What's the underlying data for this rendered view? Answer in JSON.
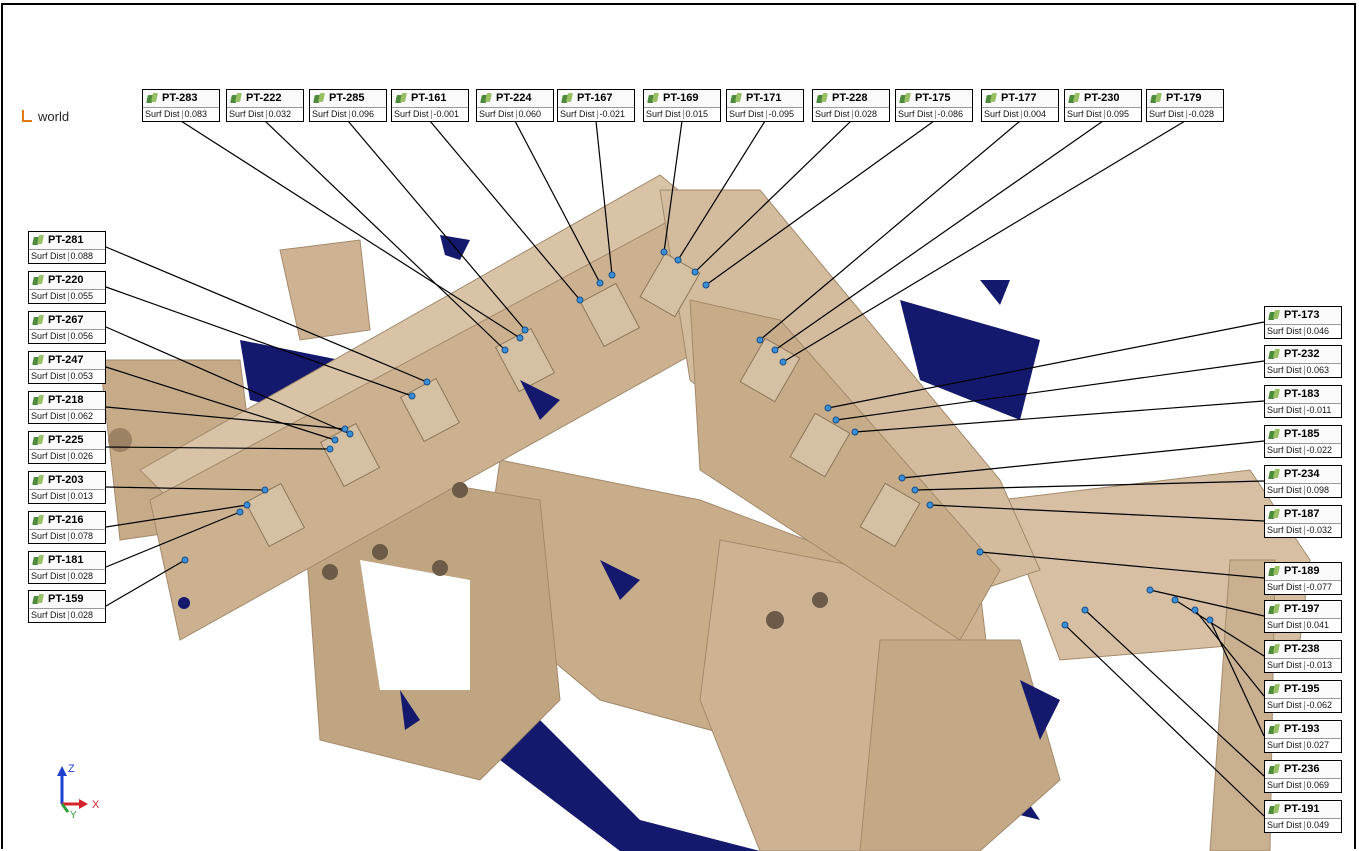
{
  "scene": {
    "coordinate_system": "world",
    "axis_labels": [
      "Z",
      "Y",
      "X"
    ],
    "colors": {
      "part": "#cdb394",
      "deviation": "#14196e",
      "callout": "#000000"
    }
  },
  "tag_key": "Surf Dist",
  "tags_top": [
    {
      "id": "PT-283",
      "value": "0.083"
    },
    {
      "id": "PT-222",
      "value": "0.032"
    },
    {
      "id": "PT-285",
      "value": "0.096"
    },
    {
      "id": "PT-161",
      "value": "-0.001"
    },
    {
      "id": "PT-224",
      "value": "0.060"
    },
    {
      "id": "PT-167",
      "value": "-0.021"
    },
    {
      "id": "PT-169",
      "value": "0.015"
    },
    {
      "id": "PT-171",
      "value": "-0.095"
    },
    {
      "id": "PT-228",
      "value": "0.028"
    },
    {
      "id": "PT-175",
      "value": "-0.086"
    },
    {
      "id": "PT-177",
      "value": "0.004"
    },
    {
      "id": "PT-230",
      "value": "0.095"
    },
    {
      "id": "PT-179",
      "value": "-0.028"
    }
  ],
  "tags_left": [
    {
      "id": "PT-281",
      "value": "0.088"
    },
    {
      "id": "PT-220",
      "value": "0.055"
    },
    {
      "id": "PT-267",
      "value": "0.056"
    },
    {
      "id": "PT-247",
      "value": "0.053"
    },
    {
      "id": "PT-218",
      "value": "0.062"
    },
    {
      "id": "PT-225",
      "value": "0.026"
    },
    {
      "id": "PT-203",
      "value": "0.013"
    },
    {
      "id": "PT-216",
      "value": "0.078"
    },
    {
      "id": "PT-181",
      "value": "0.028"
    },
    {
      "id": "PT-159",
      "value": "0.028"
    }
  ],
  "tags_right": [
    {
      "id": "PT-173",
      "value": "0.046"
    },
    {
      "id": "PT-232",
      "value": "0.063"
    },
    {
      "id": "PT-183",
      "value": "-0.011"
    },
    {
      "id": "PT-185",
      "value": "-0.022"
    },
    {
      "id": "PT-234",
      "value": "0.098"
    },
    {
      "id": "PT-187",
      "value": "-0.032"
    },
    {
      "id": "PT-189",
      "value": "-0.077"
    },
    {
      "id": "PT-197",
      "value": "0.041"
    },
    {
      "id": "PT-238",
      "value": "-0.013"
    },
    {
      "id": "PT-195",
      "value": "-0.062"
    },
    {
      "id": "PT-193",
      "value": "0.027"
    },
    {
      "id": "PT-236",
      "value": "0.069"
    },
    {
      "id": "PT-191",
      "value": "0.049"
    }
  ]
}
